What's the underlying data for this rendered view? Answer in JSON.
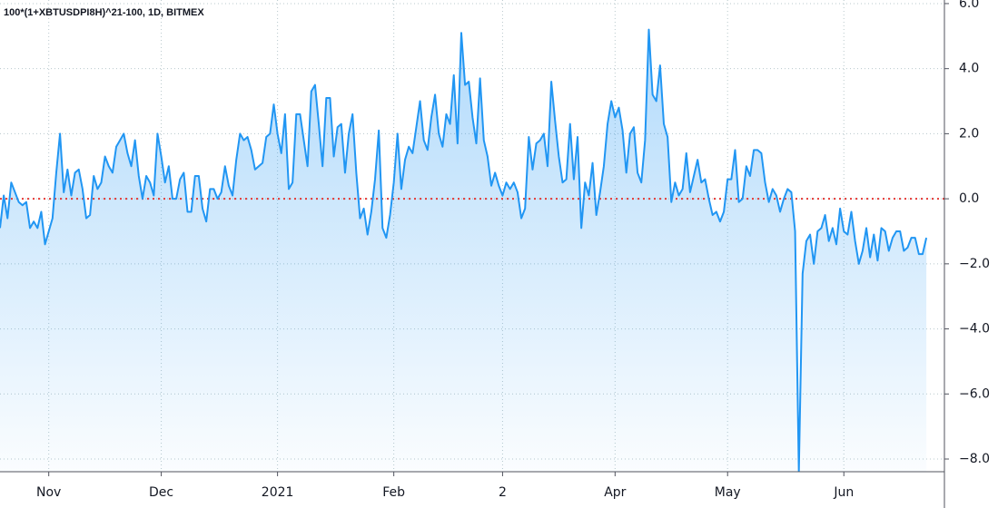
{
  "chart_data": {
    "type": "line",
    "title": "100*(1+XBTUSDPI8H)^21-100, 1D, BITMEX",
    "categories": [
      null,
      null,
      null,
      null,
      null,
      null,
      null,
      null,
      null,
      null,
      null,
      null,
      null,
      "Nov",
      null,
      null,
      null,
      null,
      null,
      null,
      null,
      null,
      null,
      null,
      null,
      null,
      null,
      null,
      null,
      null,
      null,
      null,
      null,
      null,
      null,
      null,
      null,
      null,
      null,
      null,
      null,
      null,
      null,
      "Dec",
      null,
      null,
      null,
      null,
      null,
      null,
      null,
      null,
      null,
      null,
      null,
      null,
      null,
      null,
      null,
      null,
      null,
      null,
      null,
      null,
      null,
      null,
      null,
      null,
      null,
      null,
      null,
      null,
      null,
      null,
      "2021",
      null,
      null,
      null,
      null,
      null,
      null,
      null,
      null,
      null,
      null,
      null,
      null,
      null,
      null,
      null,
      null,
      null,
      null,
      null,
      null,
      null,
      null,
      null,
      null,
      null,
      null,
      null,
      null,
      null,
      null,
      "Feb",
      null,
      null,
      null,
      null,
      null,
      null,
      null,
      null,
      null,
      null,
      null,
      null,
      null,
      null,
      null,
      null,
      null,
      null,
      null,
      null,
      null,
      null,
      null,
      null,
      null,
      null,
      null,
      null,
      "2",
      null,
      null,
      null,
      null,
      null,
      null,
      null,
      null,
      null,
      null,
      null,
      null,
      null,
      null,
      null,
      null,
      null,
      null,
      null,
      null,
      null,
      null,
      null,
      null,
      null,
      null,
      null,
      null,
      null,
      "Apr",
      null,
      null,
      null,
      null,
      null,
      null,
      null,
      null,
      null,
      null,
      null,
      null,
      null,
      null,
      null,
      null,
      null,
      null,
      null,
      null,
      null,
      null,
      null,
      null,
      null,
      null,
      null,
      null,
      null,
      "May",
      null,
      null,
      null,
      null,
      null,
      null,
      null,
      null,
      null,
      null,
      null,
      null,
      null,
      null,
      null,
      null,
      null,
      null,
      null,
      null,
      null,
      null,
      null,
      null,
      null,
      null,
      null,
      null,
      null,
      null,
      "Jun",
      null,
      null,
      null,
      null,
      null,
      null,
      null,
      null,
      null,
      null,
      null,
      null,
      null,
      null,
      null,
      null,
      null,
      null,
      null,
      null,
      null,
      null
    ],
    "values": [
      -0.9,
      0.1,
      -0.6,
      0.5,
      0.2,
      -0.1,
      -0.2,
      -0.1,
      -0.9,
      -0.7,
      -0.9,
      -0.4,
      -1.4,
      -1.0,
      -0.6,
      0.8,
      2.0,
      0.2,
      0.9,
      0.1,
      0.8,
      0.9,
      0.3,
      -0.6,
      -0.5,
      0.7,
      0.3,
      0.5,
      1.3,
      1.0,
      0.8,
      1.6,
      1.8,
      2.0,
      1.4,
      1.0,
      1.8,
      0.7,
      0.0,
      0.7,
      0.5,
      0.1,
      2.0,
      1.3,
      0.5,
      1.0,
      0.0,
      0.0,
      0.6,
      0.8,
      -0.4,
      -0.4,
      0.7,
      0.7,
      -0.3,
      -0.7,
      0.3,
      0.3,
      0.0,
      0.2,
      1.0,
      0.4,
      0.1,
      1.2,
      2.0,
      1.8,
      1.9,
      1.5,
      0.9,
      1.0,
      1.1,
      1.9,
      2.0,
      2.9,
      2.0,
      1.4,
      2.6,
      0.3,
      0.5,
      2.6,
      2.6,
      1.8,
      1.0,
      3.3,
      3.5,
      2.3,
      1.0,
      3.1,
      3.1,
      1.3,
      2.2,
      2.3,
      0.8,
      2.0,
      2.6,
      0.8,
      -0.6,
      -0.3,
      -1.1,
      -0.4,
      0.6,
      2.1,
      -0.9,
      -1.2,
      -0.5,
      0.5,
      2.0,
      0.3,
      1.2,
      1.6,
      1.4,
      2.2,
      3.0,
      1.8,
      1.5,
      2.5,
      3.2,
      2.0,
      1.6,
      2.6,
      2.3,
      3.8,
      1.7,
      5.1,
      3.5,
      3.6,
      2.5,
      1.7,
      3.7,
      1.8,
      1.3,
      0.4,
      0.8,
      0.4,
      0.1,
      0.5,
      0.3,
      0.5,
      0.2,
      -0.6,
      -0.3,
      1.9,
      0.9,
      1.7,
      1.8,
      2.0,
      1.0,
      3.6,
      2.4,
      1.3,
      0.5,
      0.6,
      2.3,
      0.6,
      1.9,
      -0.9,
      0.5,
      0.1,
      1.1,
      -0.5,
      0.2,
      1.0,
      2.3,
      3.0,
      2.5,
      2.8,
      2.1,
      0.8,
      2.0,
      2.2,
      0.8,
      0.5,
      1.8,
      5.2,
      3.2,
      3.0,
      4.1,
      2.3,
      1.9,
      -0.1,
      0.5,
      0.1,
      0.3,
      1.4,
      0.2,
      0.7,
      1.2,
      0.5,
      0.6,
      0.0,
      -0.5,
      -0.4,
      -0.7,
      -0.4,
      0.6,
      0.6,
      1.5,
      -0.1,
      0.0,
      1.0,
      0.7,
      1.5,
      1.5,
      1.4,
      0.5,
      -0.1,
      0.3,
      0.1,
      -0.4,
      0.0,
      0.3,
      0.2,
      -1.0,
      -8.4,
      -2.3,
      -1.3,
      -1.1,
      -2.0,
      -1.0,
      -0.9,
      -0.5,
      -1.3,
      -0.9,
      -1.4,
      -0.3,
      -1.0,
      -1.1,
      -0.4,
      -1.3,
      -2.0,
      -1.6,
      -0.9,
      -1.8,
      -1.1,
      -1.9,
      -0.9,
      -1.0,
      -1.6,
      -1.2,
      -1.0,
      -1.0,
      -1.6,
      -1.5,
      -1.2,
      -1.2,
      -1.7,
      -1.7,
      -1.2
    ],
    "color": "#2196f3",
    "ylim": [
      -8.39,
      6.11
    ],
    "yticks": [
      {
        "value": 6,
        "label": "6.0"
      },
      {
        "value": 4,
        "label": "4.0"
      },
      {
        "value": 2,
        "label": "2.0"
      },
      {
        "value": 0,
        "label": "0.0"
      },
      {
        "value": -2,
        "label": "−2.0"
      },
      {
        "value": -4,
        "label": "−4.0"
      },
      {
        "value": -6,
        "label": "−6.0"
      },
      {
        "value": -8,
        "label": "−8.0"
      }
    ],
    "reference_line": {
      "value": 0,
      "color": "#e53935"
    },
    "grid": true
  }
}
